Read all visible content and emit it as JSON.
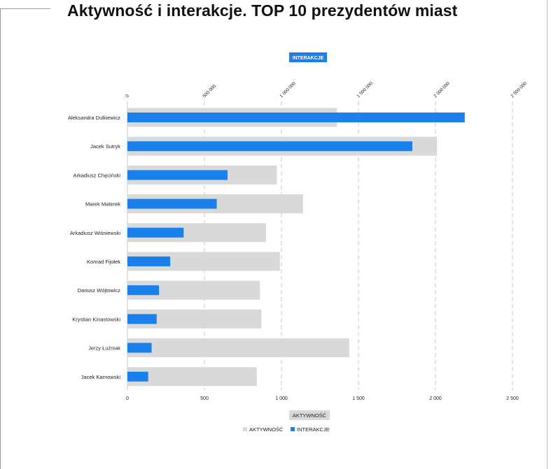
{
  "title": "Aktywność i interakcje. TOP 10 prezydentów miast",
  "chart_data": {
    "type": "bar",
    "orientation": "horizontal",
    "categories": [
      "Aleksandra Dulkiewicz",
      "Jacek Sutryk",
      "Arkadiusz Chęciński",
      "Marek Materek",
      "Arkadiusz Wiśniewski",
      "Konrad Fijołek",
      "Dariusz Wójtowicz",
      "Krystian Kinastowski",
      "Jerzy Łużniak",
      "Jacek Karnowski"
    ],
    "series": [
      {
        "name": "AKTYWNOŚĆ",
        "axis": "bottom",
        "color": "#d9d9d9",
        "values": [
          1360,
          2010,
          970,
          1140,
          900,
          990,
          860,
          870,
          1440,
          840
        ]
      },
      {
        "name": "INTERAKCJE",
        "axis": "top",
        "color": "#1a80ec",
        "values": [
          2190000,
          1850000,
          650000,
          580000,
          365000,
          278000,
          205000,
          190000,
          157000,
          135000
        ]
      }
    ],
    "x_top": {
      "label": "INTERAKCJE",
      "lim": [
        0,
        2500000
      ],
      "ticks": [
        "0",
        "500 000",
        "1 000 000",
        "1 500 000",
        "2 000 000",
        "2 500 000"
      ]
    },
    "x_bottom": {
      "label": "AKTYWNOŚĆ",
      "lim": [
        0,
        2500
      ],
      "ticks": [
        "0",
        "500",
        "1 000",
        "1 500",
        "2 000",
        "2 500"
      ]
    },
    "grid": true,
    "legend": {
      "position": "bottom",
      "items": [
        "AKTYWNOŚĆ",
        "INTERAKCJE"
      ]
    }
  }
}
